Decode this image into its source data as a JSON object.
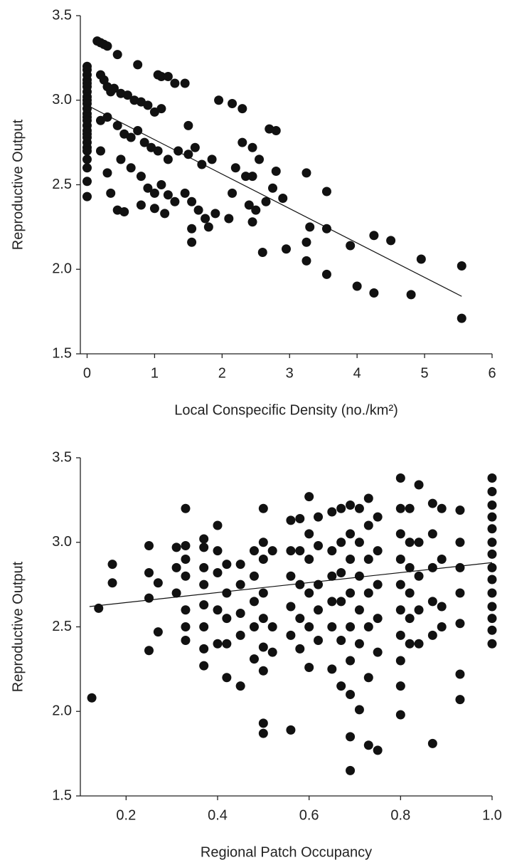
{
  "chart_data": [
    {
      "type": "scatter",
      "x_label": "Local Conspecific Density (no./km²)",
      "y_label": "Reproductive Output",
      "xlim": [
        -0.1,
        6
      ],
      "ylim": [
        1.5,
        3.5
      ],
      "xticks": [
        0,
        1,
        2,
        3,
        4,
        5,
        6
      ],
      "yticks": [
        1.5,
        {
          "value": 2,
          "label": "2.0"
        },
        2.5,
        {
          "value": 3,
          "label": "3.0"
        },
        3.5
      ],
      "color": "#111111",
      "x": [
        0,
        0,
        0,
        0,
        0,
        0,
        0,
        0,
        0,
        0,
        0,
        0,
        0,
        0,
        0,
        0,
        0,
        0,
        0,
        0,
        0,
        0,
        0,
        0,
        0,
        0.15,
        0.2,
        0.25,
        0.3,
        0.45,
        0.75,
        1.05,
        1.1,
        1.2,
        1.3,
        1.45,
        0.2,
        0.25,
        0.3,
        0.35,
        0.4,
        0.5,
        0.6,
        0.7,
        0.8,
        0.9,
        1.0,
        1.1,
        0.2,
        0.3,
        0.45,
        0.55,
        0.65,
        0.75,
        0.85,
        0.95,
        1.05,
        1.2,
        1.35,
        1.5,
        1.6,
        1.7,
        1.85,
        0.2,
        0.3,
        0.5,
        0.65,
        0.8,
        0.9,
        1.0,
        1.1,
        1.2,
        1.3,
        1.45,
        1.55,
        1.65,
        1.75,
        1.8,
        0.35,
        0.45,
        0.55,
        0.8,
        1.0,
        1.15,
        1.55,
        1.55,
        1.5,
        1.95,
        2.15,
        2.3,
        2.2,
        2.35,
        2.45,
        2.3,
        2.45,
        2.55,
        2.7,
        2.8,
        2.8,
        2.75,
        2.9,
        2.65,
        2.15,
        2.4,
        2.5,
        2.45,
        1.9,
        2.1,
        2.6,
        2.95,
        3.25,
        3.3,
        3.25,
        3.25,
        3.55,
        3.55,
        3.55,
        3.9,
        4.0,
        4.25,
        4.25,
        4.5,
        4.8,
        4.95,
        5.55,
        5.55
      ],
      "values": [
        3.2,
        3.18,
        3.15,
        3.12,
        3.1,
        3.08,
        3.05,
        3.02,
        3.0,
        2.98,
        2.95,
        2.92,
        2.9,
        2.88,
        2.85,
        2.82,
        2.8,
        2.78,
        2.75,
        2.72,
        2.7,
        2.65,
        2.6,
        2.52,
        2.43,
        3.35,
        3.34,
        3.33,
        3.32,
        3.27,
        3.21,
        3.15,
        3.14,
        3.14,
        3.1,
        3.1,
        3.15,
        3.12,
        3.08,
        3.05,
        3.07,
        3.04,
        3.03,
        3.0,
        2.99,
        2.97,
        2.93,
        2.95,
        2.88,
        2.9,
        2.85,
        2.8,
        2.78,
        2.82,
        2.75,
        2.72,
        2.7,
        2.65,
        2.7,
        2.68,
        2.72,
        2.62,
        2.65,
        2.7,
        2.57,
        2.65,
        2.6,
        2.55,
        2.48,
        2.45,
        2.5,
        2.44,
        2.4,
        2.45,
        2.4,
        2.35,
        2.3,
        2.25,
        2.45,
        2.35,
        2.34,
        2.38,
        2.36,
        2.33,
        2.16,
        2.24,
        2.85,
        3.0,
        2.98,
        2.95,
        2.6,
        2.55,
        2.55,
        2.75,
        2.72,
        2.65,
        2.83,
        2.82,
        2.58,
        2.48,
        2.42,
        2.4,
        2.45,
        2.38,
        2.35,
        2.28,
        2.33,
        2.3,
        2.1,
        2.12,
        2.57,
        2.25,
        2.16,
        2.05,
        2.24,
        2.46,
        1.97,
        2.14,
        1.9,
        2.2,
        1.86,
        2.17,
        1.85,
        2.06,
        2.02,
        1.71
      ],
      "trend": {
        "x": [
          0,
          5.55
        ],
        "values": [
          2.97,
          1.84
        ]
      }
    },
    {
      "type": "scatter",
      "x_label": "Regional Patch Occupancy",
      "y_label": "Reproductive Output",
      "xlim": [
        0.1,
        1.0
      ],
      "ylim": [
        1.5,
        3.5
      ],
      "xticks": [
        0.2,
        0.4,
        0.6,
        0.8,
        {
          "value": 1,
          "label": "1.0"
        }
      ],
      "yticks": [
        1.5,
        {
          "value": 2,
          "label": "2.0"
        },
        2.5,
        {
          "value": 3,
          "label": "3.0"
        },
        3.5
      ],
      "color": "#111111",
      "x": [
        0.125,
        0.14,
        0.17,
        0.17,
        0.25,
        0.25,
        0.25,
        0.25,
        0.27,
        0.27,
        0.31,
        0.31,
        0.31,
        0.33,
        0.33,
        0.33,
        0.33,
        0.33,
        0.33,
        0.33,
        0.37,
        0.37,
        0.37,
        0.37,
        0.37,
        0.37,
        0.37,
        0.37,
        0.4,
        0.4,
        0.4,
        0.4,
        0.4,
        0.42,
        0.42,
        0.42,
        0.42,
        0.42,
        0.45,
        0.45,
        0.45,
        0.45,
        0.45,
        0.48,
        0.48,
        0.48,
        0.48,
        0.48,
        0.5,
        0.5,
        0.5,
        0.5,
        0.5,
        0.5,
        0.5,
        0.5,
        0.5,
        0.52,
        0.52,
        0.52,
        0.56,
        0.56,
        0.56,
        0.56,
        0.56,
        0.56,
        0.58,
        0.58,
        0.58,
        0.58,
        0.58,
        0.6,
        0.6,
        0.6,
        0.6,
        0.6,
        0.6,
        0.62,
        0.62,
        0.62,
        0.62,
        0.62,
        0.65,
        0.65,
        0.65,
        0.65,
        0.65,
        0.65,
        0.67,
        0.67,
        0.67,
        0.67,
        0.67,
        0.67,
        0.69,
        0.69,
        0.69,
        0.69,
        0.69,
        0.69,
        0.69,
        0.69,
        0.69,
        0.71,
        0.71,
        0.71,
        0.71,
        0.71,
        0.71,
        0.73,
        0.73,
        0.73,
        0.73,
        0.73,
        0.73,
        0.73,
        0.75,
        0.75,
        0.75,
        0.75,
        0.75,
        0.75,
        0.8,
        0.8,
        0.8,
        0.8,
        0.8,
        0.8,
        0.8,
        0.8,
        0.8,
        0.8,
        0.82,
        0.82,
        0.82,
        0.82,
        0.82,
        0.82,
        0.84,
        0.84,
        0.84,
        0.84,
        0.84,
        0.87,
        0.87,
        0.87,
        0.87,
        0.87,
        0.87,
        0.89,
        0.89,
        0.89,
        0.89,
        0.93,
        0.93,
        0.93,
        0.93,
        0.93,
        0.93,
        0.93,
        1.0,
        1.0,
        1.0,
        1.0,
        1.0,
        1.0,
        1.0,
        1.0,
        1.0,
        1.0,
        1.0,
        1.0,
        1.0,
        1.0
      ],
      "values": [
        2.08,
        2.61,
        2.87,
        2.76,
        2.98,
        2.82,
        2.67,
        2.36,
        2.76,
        2.47,
        2.97,
        2.85,
        2.7,
        3.2,
        2.98,
        2.9,
        2.8,
        2.6,
        2.5,
        2.42,
        3.02,
        2.97,
        2.85,
        2.75,
        2.63,
        2.5,
        2.37,
        2.27,
        3.1,
        2.95,
        2.82,
        2.6,
        2.4,
        2.87,
        2.7,
        2.55,
        2.4,
        2.2,
        2.87,
        2.75,
        2.58,
        2.45,
        2.15,
        2.95,
        2.8,
        2.65,
        2.5,
        2.31,
        3.2,
        3.0,
        2.9,
        2.7,
        2.55,
        2.38,
        2.24,
        1.93,
        1.87,
        2.95,
        2.5,
        2.35,
        3.13,
        2.95,
        2.8,
        2.62,
        2.45,
        1.89,
        3.14,
        2.95,
        2.75,
        2.55,
        2.37,
        3.27,
        3.05,
        2.9,
        2.7,
        2.5,
        2.26,
        3.15,
        2.98,
        2.75,
        2.6,
        2.42,
        3.18,
        2.95,
        2.8,
        2.65,
        2.5,
        2.25,
        3.2,
        3.0,
        2.82,
        2.65,
        2.42,
        2.15,
        3.22,
        3.05,
        2.9,
        2.7,
        2.5,
        2.3,
        2.1,
        1.85,
        1.65,
        3.2,
        3.0,
        2.8,
        2.6,
        2.4,
        2.01,
        3.26,
        3.1,
        2.9,
        2.7,
        2.5,
        2.2,
        1.8,
        3.15,
        2.95,
        2.75,
        2.55,
        2.35,
        1.77,
        3.38,
        3.2,
        3.05,
        2.9,
        2.75,
        2.6,
        2.45,
        2.3,
        2.15,
        1.98,
        3.2,
        3.0,
        2.85,
        2.7,
        2.55,
        2.4,
        3.34,
        3.0,
        2.8,
        2.6,
        2.4,
        3.23,
        3.05,
        2.85,
        2.65,
        2.45,
        1.81,
        3.2,
        2.9,
        2.62,
        2.5,
        3.19,
        3.0,
        2.85,
        2.7,
        2.52,
        2.22,
        2.07,
        3.38,
        3.3,
        3.22,
        3.15,
        3.08,
        3.0,
        2.93,
        2.85,
        2.78,
        2.7,
        2.62,
        2.55,
        2.48,
        2.4
      ],
      "trend": {
        "x": [
          0.12,
          1.0
        ],
        "values": [
          2.62,
          2.88
        ]
      }
    }
  ]
}
